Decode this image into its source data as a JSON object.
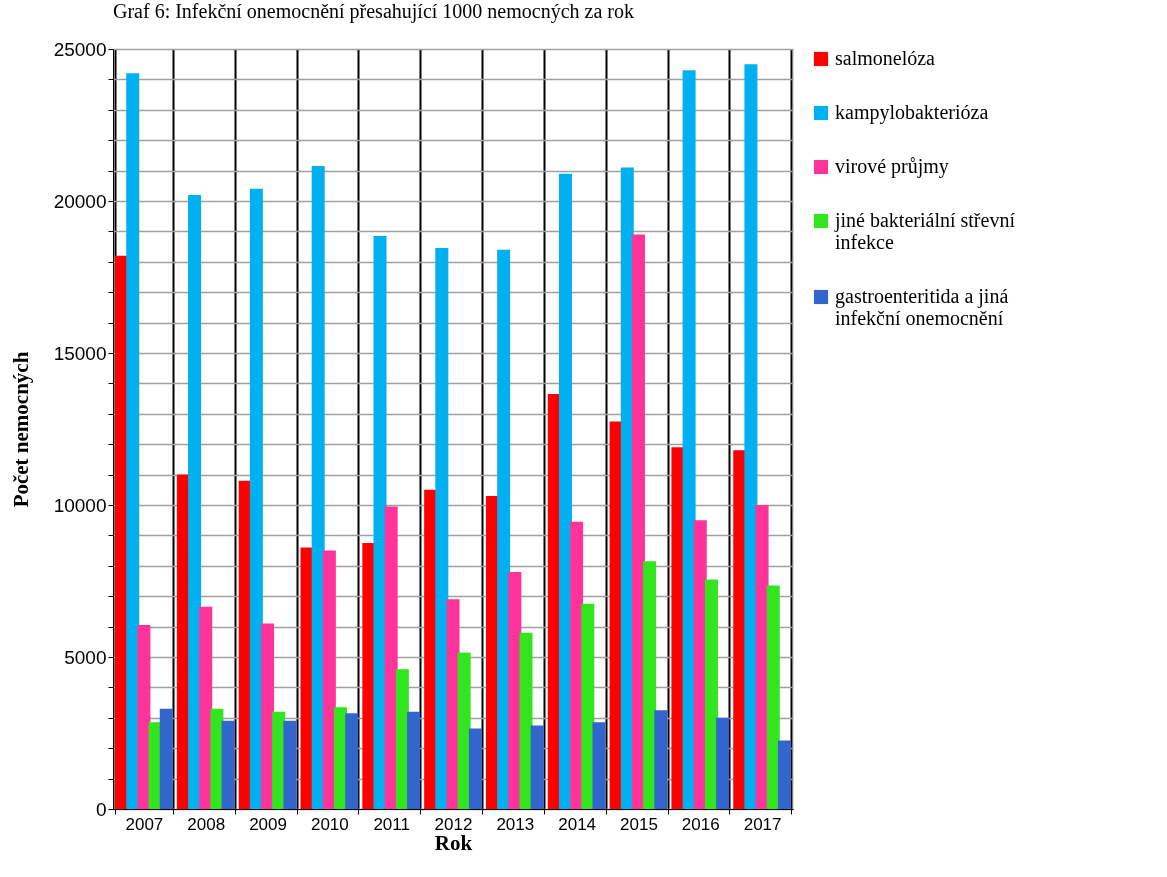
{
  "chart_data": {
    "type": "bar",
    "title": "Graf 6: Infekční onemocnění přesahující 1000 nemocných za rok",
    "xlabel": "Rok",
    "ylabel": "Počet nemocných",
    "categories": [
      "2007",
      "2008",
      "2009",
      "2010",
      "2011",
      "2012",
      "2013",
      "2014",
      "2015",
      "2016",
      "2017"
    ],
    "series": [
      {
        "name": "salmonelóza",
        "color": "#ff0000",
        "values": [
          18200,
          11000,
          10800,
          8600,
          8750,
          10500,
          10300,
          13650,
          12750,
          11900,
          11800
        ]
      },
      {
        "name": "kampylobakterióza",
        "color": "#00b0f0",
        "values": [
          24200,
          20200,
          20400,
          21150,
          18850,
          18450,
          18400,
          20900,
          21100,
          24300,
          24500
        ]
      },
      {
        "name": "virové průjmy",
        "color": "#ff3399",
        "values": [
          6050,
          6650,
          6100,
          8500,
          9950,
          6900,
          7800,
          9450,
          18900,
          9500,
          10000
        ]
      },
      {
        "name": "jiné bakteriální střevní infekce",
        "color": "#33e51f",
        "values": [
          2850,
          3300,
          3200,
          3350,
          4600,
          5150,
          5800,
          6750,
          8150,
          7550,
          7350
        ]
      },
      {
        "name": "gastroenteritida a jiná infekční onemocnění",
        "color": "#3366cc",
        "values": [
          3300,
          2900,
          2900,
          3150,
          3200,
          2650,
          2750,
          2850,
          3250,
          3000,
          2250
        ]
      }
    ],
    "ylim": [
      0,
      25000
    ],
    "yticks": [
      0,
      {
        "value": 1000,
        "label": null
      },
      {
        "value": 2000,
        "label": null
      },
      {
        "value": 3000,
        "label": null
      },
      {
        "value": 4000,
        "label": null
      },
      5000,
      {
        "value": 6000,
        "label": null
      },
      {
        "value": 7000,
        "label": null
      },
      {
        "value": 8000,
        "label": null
      },
      {
        "value": 9000,
        "label": null
      },
      10000,
      {
        "value": 11000,
        "label": null
      },
      {
        "value": 12000,
        "label": null
      },
      {
        "value": 13000,
        "label": null
      },
      {
        "value": 14000,
        "label": null
      },
      15000,
      {
        "value": 16000,
        "label": null
      },
      {
        "value": 17000,
        "label": null
      },
      {
        "value": 18000,
        "label": null
      },
      {
        "value": 19000,
        "label": null
      },
      20000,
      {
        "value": 21000,
        "label": null
      },
      {
        "value": 22000,
        "label": null
      },
      {
        "value": 23000,
        "label": null
      },
      {
        "value": 24000,
        "label": null
      },
      25000
    ],
    "grid": true,
    "legend": "right"
  }
}
